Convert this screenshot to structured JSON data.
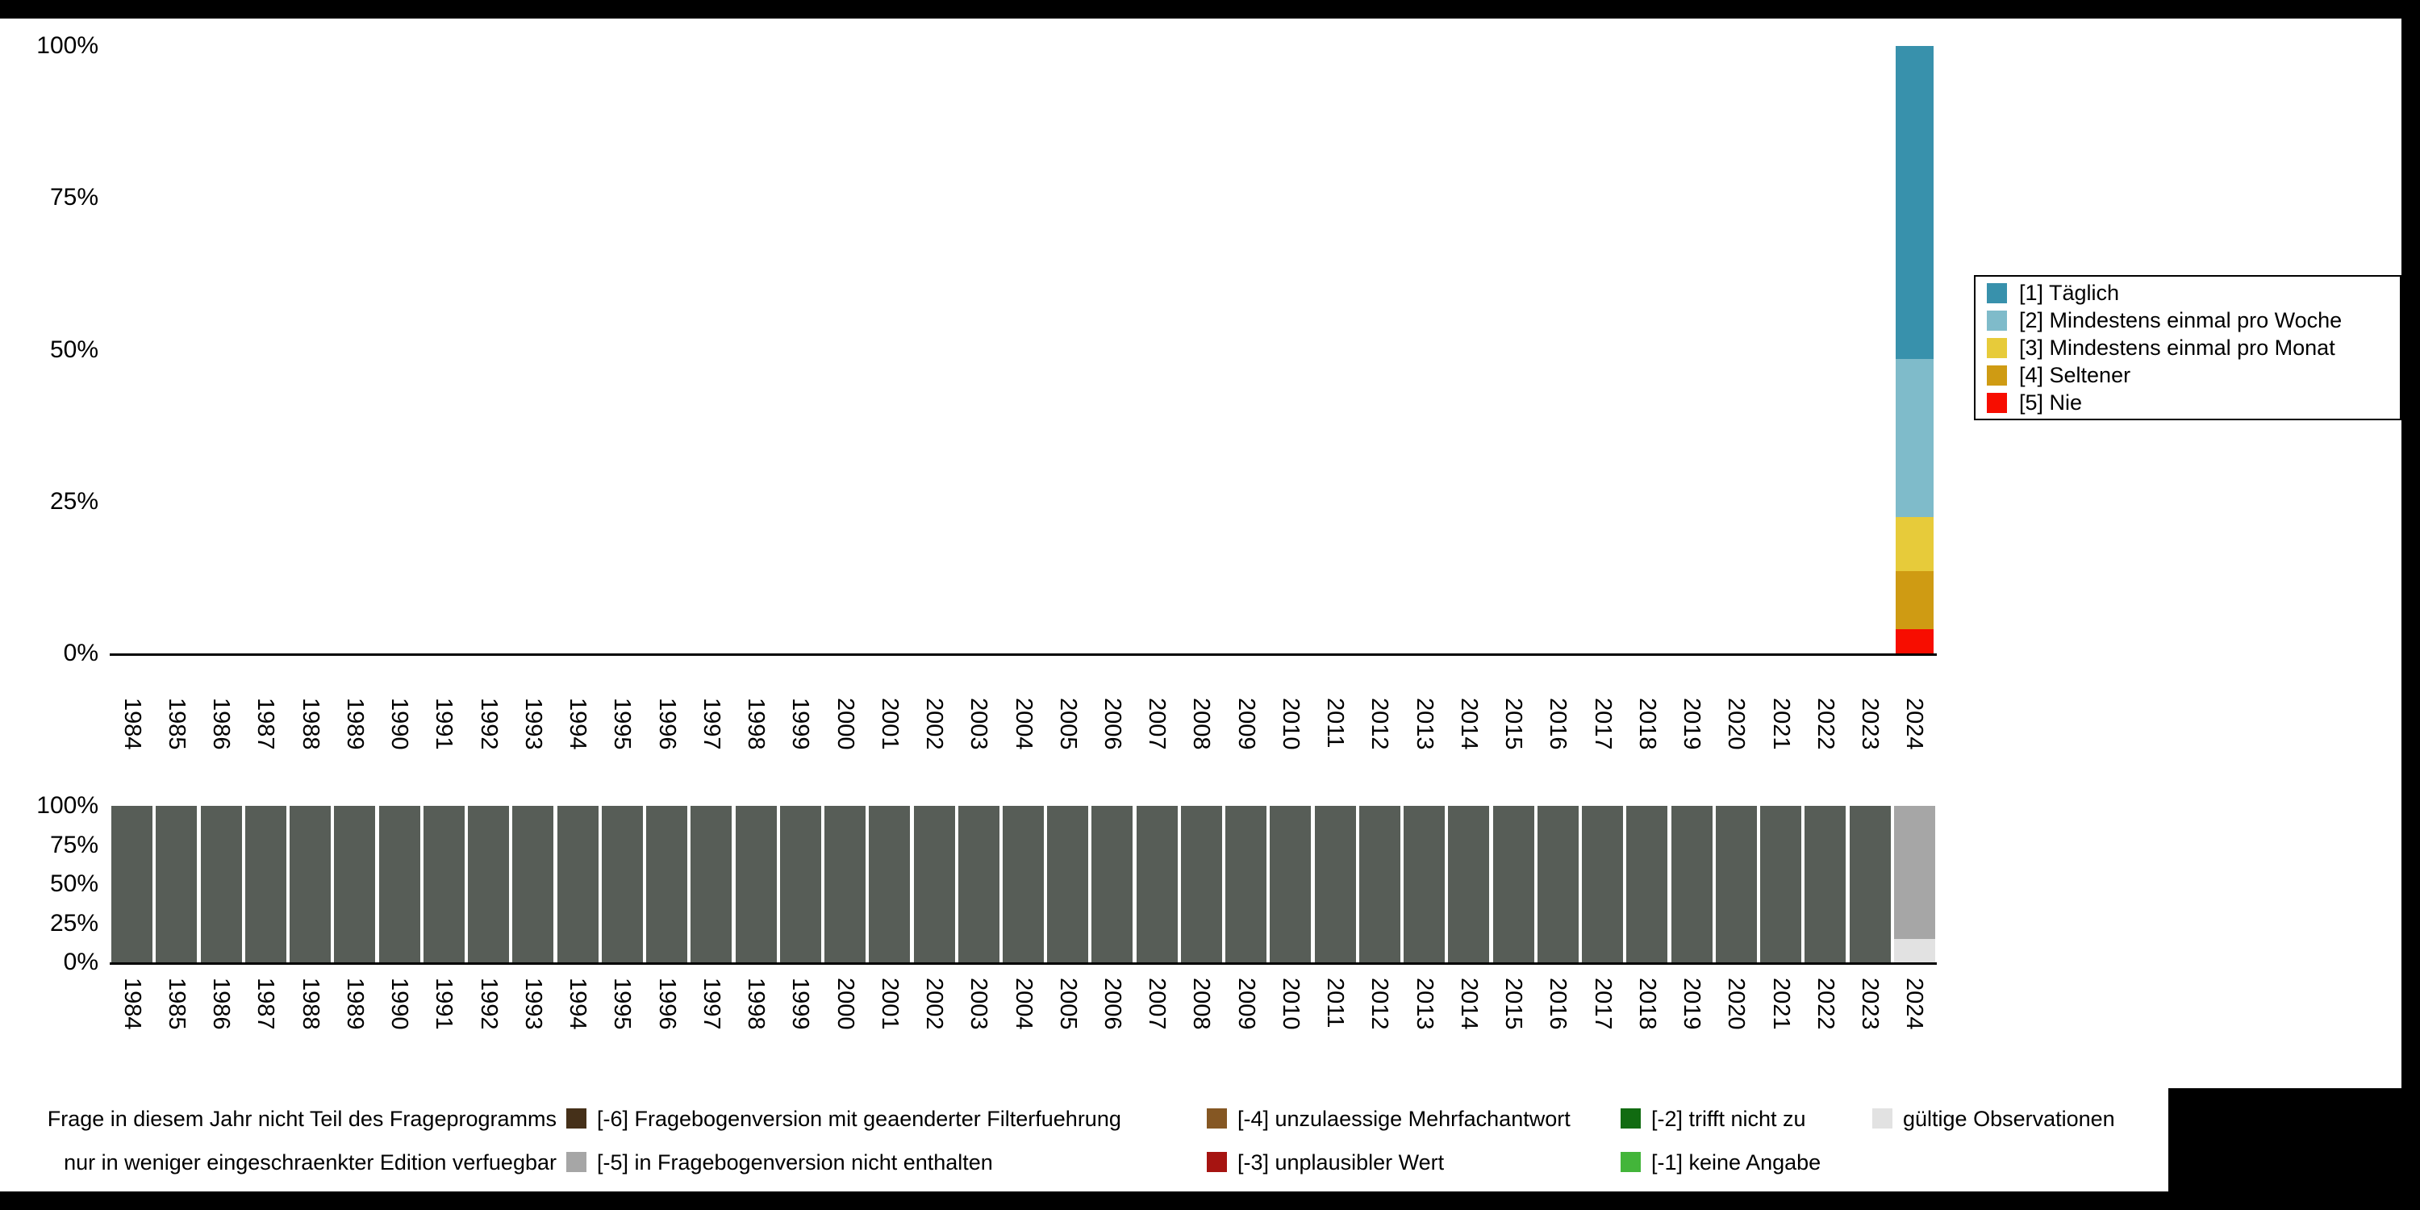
{
  "canvas": {
    "background": "#000000",
    "figure_background": "#ffffff"
  },
  "chart_data": [
    {
      "id": "frequency-distribution-by-year",
      "type": "bar",
      "stacked": true,
      "unit": "percent",
      "ylim": [
        0,
        100
      ],
      "yticks": [
        "100%",
        "75%",
        "50%",
        "25%",
        "0%"
      ],
      "grid": false,
      "legend_position": "right",
      "x": [
        "1984",
        "1985",
        "1986",
        "1987",
        "1988",
        "1989",
        "1990",
        "1991",
        "1992",
        "1993",
        "1994",
        "1995",
        "1996",
        "1997",
        "1998",
        "1999",
        "2000",
        "2001",
        "2002",
        "2003",
        "2004",
        "2005",
        "2006",
        "2007",
        "2008",
        "2009",
        "2010",
        "2011",
        "2012",
        "2013",
        "2014",
        "2015",
        "2016",
        "2017",
        "2018",
        "2019",
        "2020",
        "2021",
        "2022",
        "2023",
        "2024"
      ],
      "series": [
        {
          "label": "[1] Täglich",
          "color": "#3891ac",
          "values": [
            0,
            0,
            0,
            0,
            0,
            0,
            0,
            0,
            0,
            0,
            0,
            0,
            0,
            0,
            0,
            0,
            0,
            0,
            0,
            0,
            0,
            0,
            0,
            0,
            0,
            0,
            0,
            0,
            0,
            0,
            0,
            0,
            0,
            0,
            0,
            0,
            0,
            0,
            0,
            0,
            51.5
          ]
        },
        {
          "label": "[2] Mindestens einmal pro Woche",
          "color": "#7fbbca",
          "values": [
            0,
            0,
            0,
            0,
            0,
            0,
            0,
            0,
            0,
            0,
            0,
            0,
            0,
            0,
            0,
            0,
            0,
            0,
            0,
            0,
            0,
            0,
            0,
            0,
            0,
            0,
            0,
            0,
            0,
            0,
            0,
            0,
            0,
            0,
            0,
            0,
            0,
            0,
            0,
            0,
            26
          ]
        },
        {
          "label": "[3] Mindestens einmal pro Monat",
          "color": "#e7cb3a",
          "values": [
            0,
            0,
            0,
            0,
            0,
            0,
            0,
            0,
            0,
            0,
            0,
            0,
            0,
            0,
            0,
            0,
            0,
            0,
            0,
            0,
            0,
            0,
            0,
            0,
            0,
            0,
            0,
            0,
            0,
            0,
            0,
            0,
            0,
            0,
            0,
            0,
            0,
            0,
            0,
            0,
            9
          ]
        },
        {
          "label": "[4] Seltener",
          "color": "#cf9b13",
          "values": [
            0,
            0,
            0,
            0,
            0,
            0,
            0,
            0,
            0,
            0,
            0,
            0,
            0,
            0,
            0,
            0,
            0,
            0,
            0,
            0,
            0,
            0,
            0,
            0,
            0,
            0,
            0,
            0,
            0,
            0,
            0,
            0,
            0,
            0,
            0,
            0,
            0,
            0,
            0,
            0,
            9.5
          ]
        },
        {
          "label": "[5] Nie",
          "color": "#f70d00",
          "values": [
            0,
            0,
            0,
            0,
            0,
            0,
            0,
            0,
            0,
            0,
            0,
            0,
            0,
            0,
            0,
            0,
            0,
            0,
            0,
            0,
            0,
            0,
            0,
            0,
            0,
            0,
            0,
            0,
            0,
            0,
            0,
            0,
            0,
            0,
            0,
            0,
            0,
            0,
            0,
            0,
            4
          ]
        }
      ]
    },
    {
      "id": "missing-values-by-year",
      "type": "bar",
      "stacked": true,
      "unit": "percent",
      "ylim": [
        0,
        100
      ],
      "yticks": [
        "100%",
        "75%",
        "50%",
        "25%",
        "0%"
      ],
      "grid": false,
      "x": [
        "1984",
        "1985",
        "1986",
        "1987",
        "1988",
        "1989",
        "1990",
        "1991",
        "1992",
        "1993",
        "1994",
        "1995",
        "1996",
        "1997",
        "1998",
        "1999",
        "2000",
        "2001",
        "2002",
        "2003",
        "2004",
        "2005",
        "2006",
        "2007",
        "2008",
        "2009",
        "2010",
        "2011",
        "2012",
        "2013",
        "2014",
        "2015",
        "2016",
        "2017",
        "2018",
        "2019",
        "2020",
        "2021",
        "2022",
        "2023",
        "2024"
      ],
      "series": [
        {
          "label": "Frage in diesem Jahr nicht Teil des Frageprogramms",
          "color": "#575d57",
          "values": [
            100,
            100,
            100,
            100,
            100,
            100,
            100,
            100,
            100,
            100,
            100,
            100,
            100,
            100,
            100,
            100,
            100,
            100,
            100,
            100,
            100,
            100,
            100,
            100,
            100,
            100,
            100,
            100,
            100,
            100,
            100,
            100,
            100,
            100,
            100,
            100,
            100,
            100,
            100,
            100,
            0
          ]
        },
        {
          "label": "[-5] in Fragebogenversion nicht enthalten",
          "color": "#a6a6a6",
          "values": [
            0,
            0,
            0,
            0,
            0,
            0,
            0,
            0,
            0,
            0,
            0,
            0,
            0,
            0,
            0,
            0,
            0,
            0,
            0,
            0,
            0,
            0,
            0,
            0,
            0,
            0,
            0,
            0,
            0,
            0,
            0,
            0,
            0,
            0,
            0,
            0,
            0,
            0,
            0,
            0,
            85
          ]
        },
        {
          "label": "gültige Observationen",
          "color": "#e2e2e2",
          "values": [
            0,
            0,
            0,
            0,
            0,
            0,
            0,
            0,
            0,
            0,
            0,
            0,
            0,
            0,
            0,
            0,
            0,
            0,
            0,
            0,
            0,
            0,
            0,
            0,
            0,
            0,
            0,
            0,
            0,
            0,
            0,
            0,
            0,
            0,
            0,
            0,
            0,
            0,
            0,
            0,
            15
          ]
        }
      ]
    }
  ],
  "legend_bottom": {
    "rows": [
      [
        {
          "label": "Frage in diesem Jahr nicht Teil des Frageprogramms",
          "color": "#575d57"
        },
        {
          "label": "[-6] Fragebogenversion mit geaenderter Filterfuehrung",
          "color": "#453019"
        },
        {
          "label": "[-4] unzulaessige Mehrfachantwort",
          "color": "#855723"
        },
        {
          "label": "[-2] trifft nicht zu",
          "color": "#116b11"
        },
        {
          "label": "gültige Observationen",
          "color": "#e2e2e2"
        }
      ],
      [
        {
          "label": "nur in weniger eingeschraenkter Edition verfuegbar",
          "color": "#9e9e9e"
        },
        {
          "label": "[-5] in Fragebogenversion nicht enthalten",
          "color": "#a6a6a6"
        },
        {
          "label": "[-3] unplausibler Wert",
          "color": "#a61411"
        },
        {
          "label": "[-1] keine Angabe",
          "color": "#43b53a"
        }
      ]
    ]
  }
}
